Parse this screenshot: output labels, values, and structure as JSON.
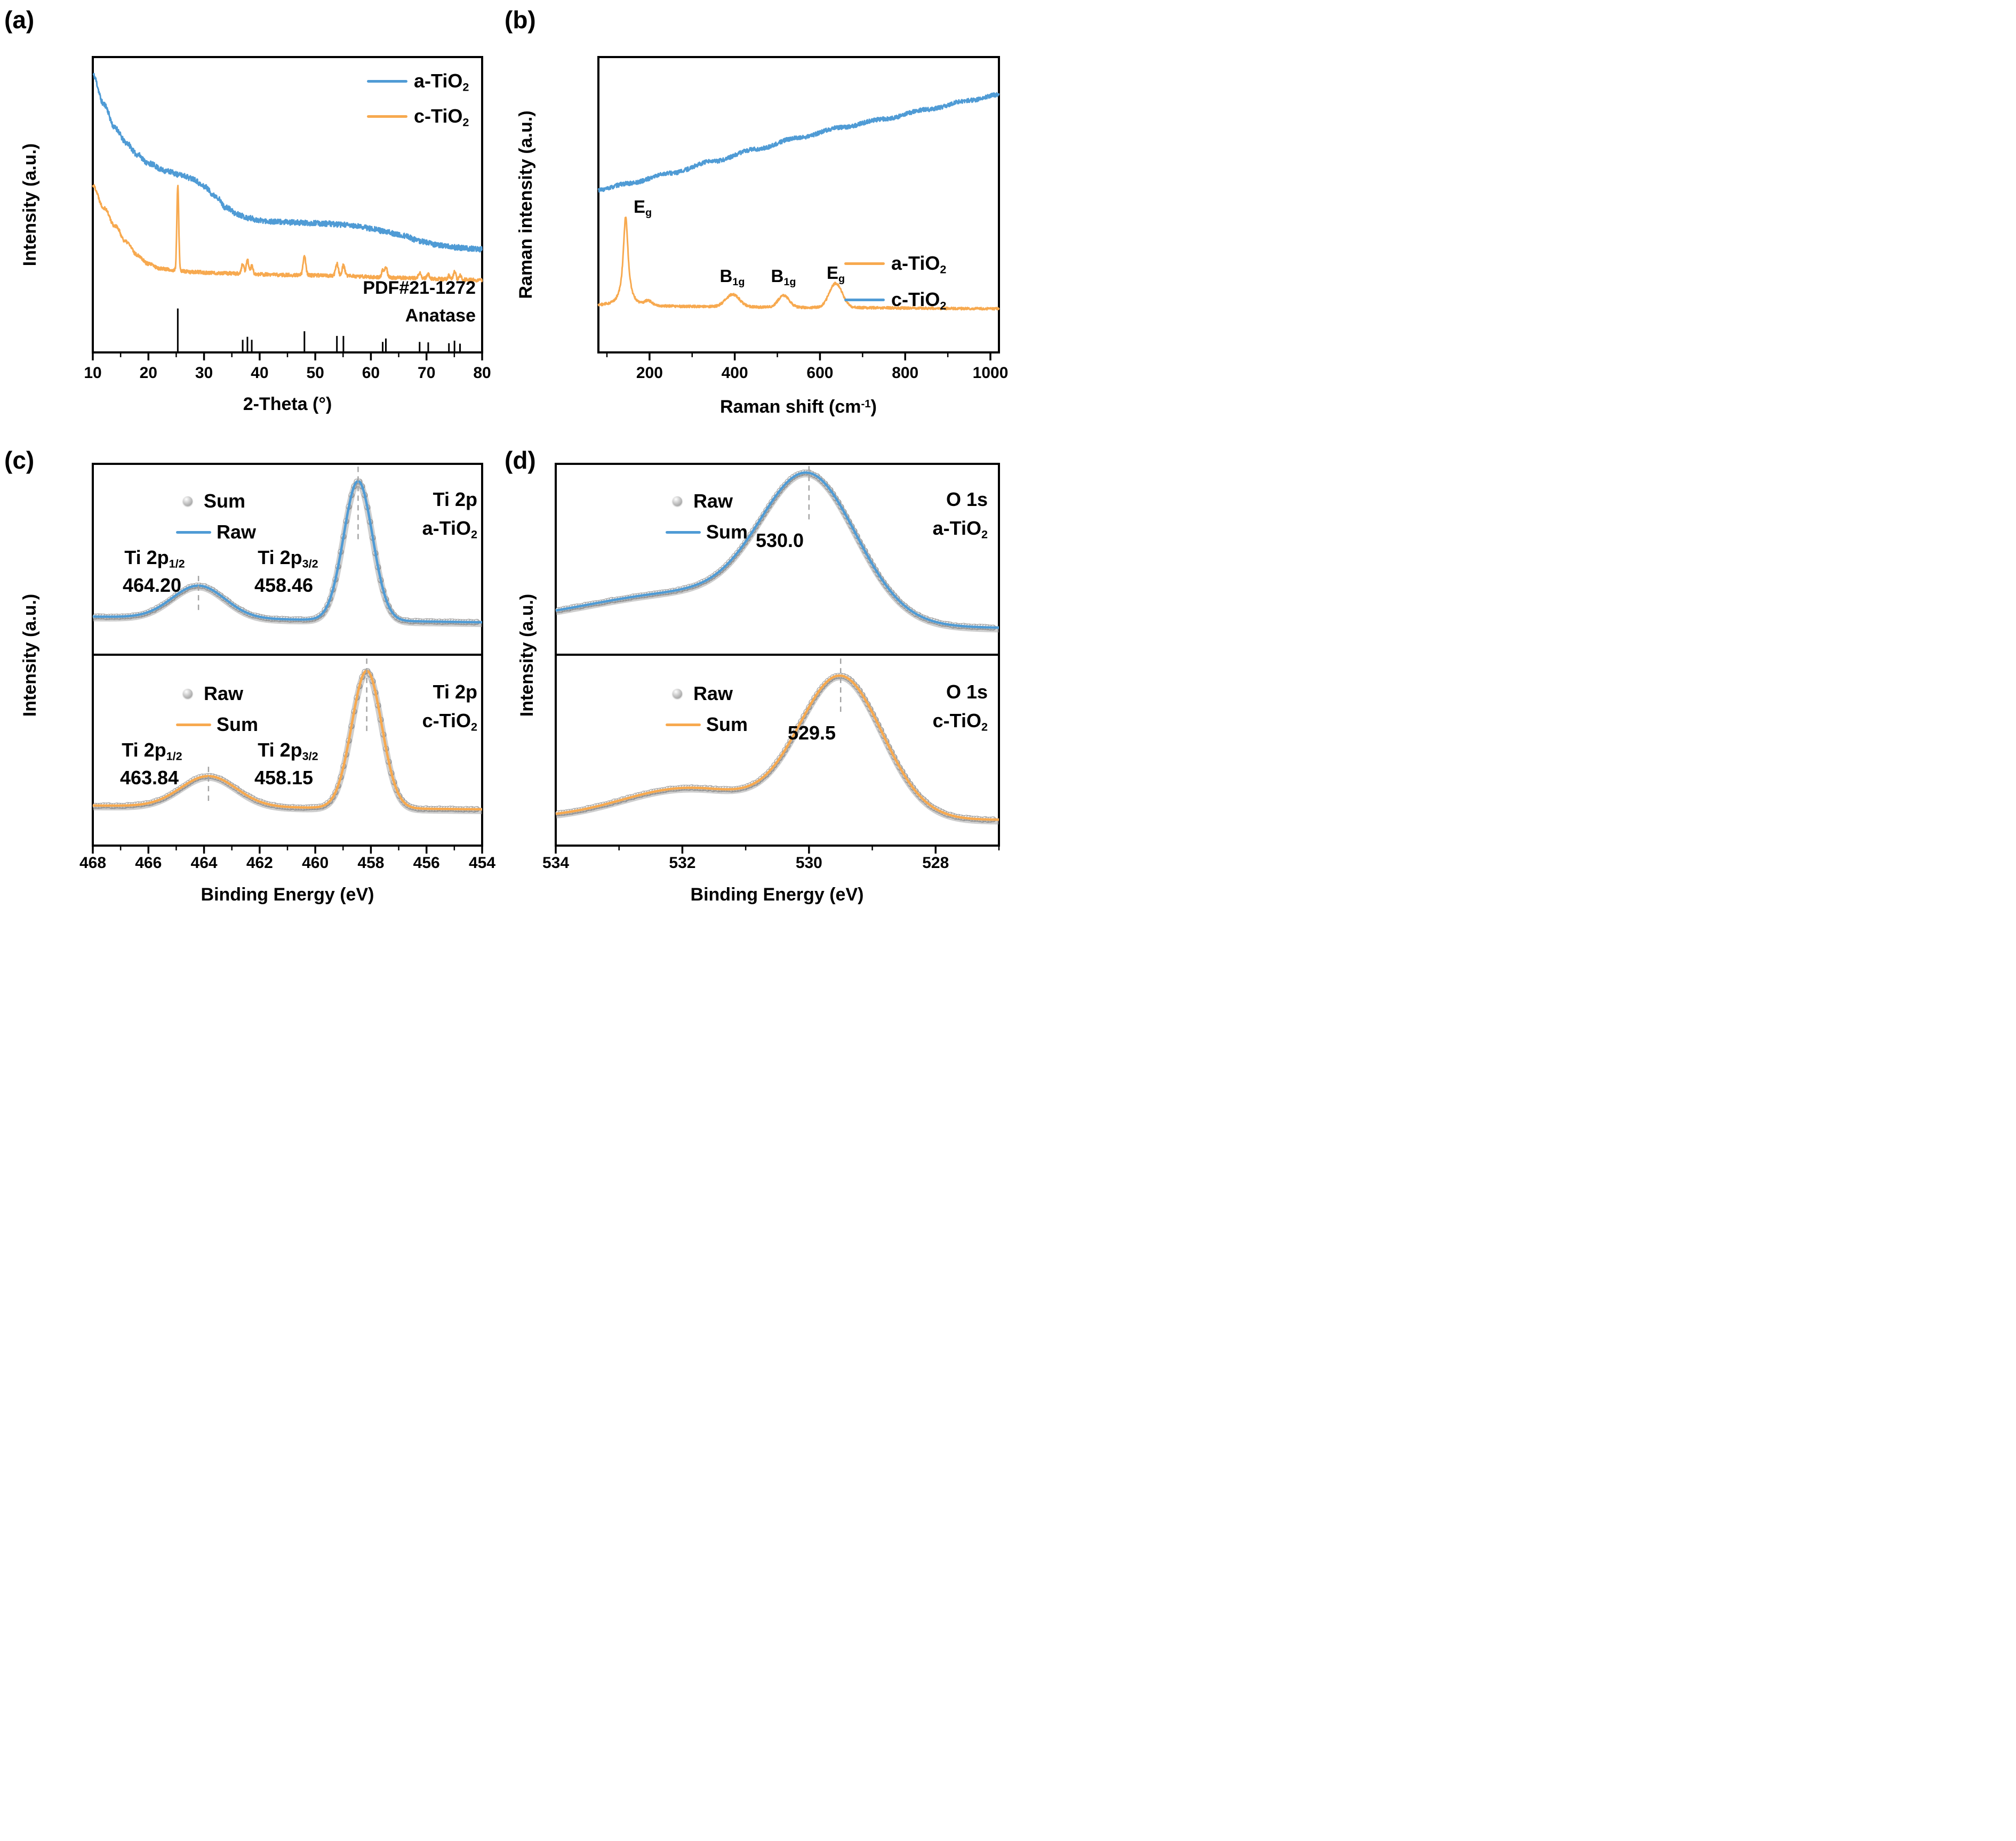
{
  "panels": {
    "a": {
      "letter": "(a)",
      "ylabel": "Intensity (a.u.)",
      "xlabel": "2-Theta (°)"
    },
    "b": {
      "letter": "(b)",
      "ylabel": "Raman intensity (a.u.)",
      "xlabel_rich": [
        [
          "t",
          "Raman shift (cm"
        ],
        [
          "sup",
          "-1"
        ],
        [
          "t",
          ")"
        ]
      ]
    },
    "c": {
      "letter": "(c)",
      "ylabel": "Intensity (a.u.)",
      "xlabel": "Binding Energy (eV)"
    },
    "d": {
      "letter": "(d)",
      "ylabel": "Intensity (a.u.)",
      "xlabel": "Binding Energy (eV)"
    }
  },
  "chart_data": [
    {
      "id": "xrd",
      "type": "line",
      "panel": "a",
      "xlabel": "2-Theta (deg)",
      "ylabel": "Intensity (a.u.)",
      "x_range": [
        10,
        80
      ],
      "x_ticks_major": [
        10,
        20,
        30,
        40,
        50,
        60,
        70,
        80
      ],
      "x_ticks_minor": [
        15,
        25,
        35,
        45,
        55,
        65,
        75
      ],
      "grid": false,
      "legend_position": "top-right",
      "series": [
        {
          "name": "a-TiO2",
          "label_rich": [
            [
              "t",
              "a-TiO"
            ],
            [
              "sub",
              "2"
            ]
          ],
          "color": "#4F9BD5",
          "noise": 0.009,
          "seed": 11,
          "anchors": [
            [
              10,
              0.94
            ],
            [
              12,
              0.84
            ],
            [
              14,
              0.76
            ],
            [
              16,
              0.71
            ],
            [
              18,
              0.67
            ],
            [
              20,
              0.64
            ],
            [
              23,
              0.615
            ],
            [
              26,
              0.6
            ],
            [
              28,
              0.588
            ],
            [
              30,
              0.562
            ],
            [
              32,
              0.53
            ],
            [
              34,
              0.49
            ],
            [
              36,
              0.468
            ],
            [
              38,
              0.455
            ],
            [
              40,
              0.447
            ],
            [
              43,
              0.442
            ],
            [
              46,
              0.44
            ],
            [
              49,
              0.438
            ],
            [
              52,
              0.436
            ],
            [
              55,
              0.432
            ],
            [
              58,
              0.426
            ],
            [
              60,
              0.42
            ],
            [
              63,
              0.407
            ],
            [
              66,
              0.394
            ],
            [
              69,
              0.376
            ],
            [
              72,
              0.364
            ],
            [
              75,
              0.356
            ],
            [
              78,
              0.351
            ],
            [
              80,
              0.349
            ]
          ],
          "peaks": []
        },
        {
          "name": "c-TiO2",
          "label_rich": [
            [
              "t",
              "c-TiO"
            ],
            [
              "sub",
              "2"
            ]
          ],
          "color": "#F7A94F",
          "noise": 0.006,
          "seed": 22,
          "anchors": [
            [
              10,
              0.565
            ],
            [
              12,
              0.49
            ],
            [
              14,
              0.428
            ],
            [
              16,
              0.374
            ],
            [
              18,
              0.33
            ],
            [
              20,
              0.3
            ],
            [
              22,
              0.285
            ],
            [
              25,
              0.277
            ],
            [
              28,
              0.272
            ],
            [
              32,
              0.269
            ],
            [
              36,
              0.267
            ],
            [
              40,
              0.264
            ],
            [
              45,
              0.262
            ],
            [
              50,
              0.261
            ],
            [
              55,
              0.259
            ],
            [
              60,
              0.256
            ],
            [
              65,
              0.253
            ],
            [
              70,
              0.25
            ],
            [
              75,
              0.247
            ],
            [
              80,
              0.245
            ]
          ],
          "peaks": [
            [
              25.28,
              0.285,
              0.17
            ],
            [
              36.95,
              0.032,
              0.22
            ],
            [
              37.8,
              0.048,
              0.22
            ],
            [
              38.58,
              0.028,
              0.22
            ],
            [
              48.05,
              0.062,
              0.25
            ],
            [
              53.89,
              0.042,
              0.25
            ],
            [
              55.06,
              0.036,
              0.25
            ],
            [
              62.12,
              0.02,
              0.22
            ],
            [
              62.69,
              0.034,
              0.25
            ],
            [
              68.76,
              0.018,
              0.22
            ],
            [
              70.31,
              0.016,
              0.22
            ],
            [
              74.03,
              0.013,
              0.2
            ],
            [
              75.03,
              0.026,
              0.22
            ],
            [
              76.02,
              0.014,
              0.2
            ]
          ]
        }
      ],
      "reference": {
        "label_line1": "PDF#21-1272",
        "label_line2": "Anatase",
        "max_height": 0.145,
        "sticks": [
          [
            25.28,
            1.0
          ],
          [
            36.95,
            0.27
          ],
          [
            37.8,
            0.34
          ],
          [
            38.58,
            0.27
          ],
          [
            48.05,
            0.47
          ],
          [
            53.89,
            0.36
          ],
          [
            55.06,
            0.36
          ],
          [
            62.12,
            0.22
          ],
          [
            62.69,
            0.3
          ],
          [
            68.76,
            0.22
          ],
          [
            70.31,
            0.21
          ],
          [
            74.03,
            0.19
          ],
          [
            75.03,
            0.25
          ],
          [
            76.02,
            0.18
          ]
        ]
      }
    },
    {
      "id": "raman",
      "type": "line",
      "panel": "b",
      "xlabel": "Raman shift (cm-1)",
      "ylabel": "Raman intensity (a.u.)",
      "x_range": [
        80,
        1020
      ],
      "x_ticks_major": [
        200,
        400,
        600,
        800,
        1000
      ],
      "x_ticks_minor": [
        100,
        300,
        500,
        700,
        900
      ],
      "grid": false,
      "legend_position": "middle-right",
      "series": [
        {
          "name": "a-TiO2",
          "label_rich": [
            [
              "t",
              "a-TiO"
            ],
            [
              "sub",
              "2"
            ]
          ],
          "color": "#F7A94F",
          "noise": 0.004,
          "seed": 44,
          "anchors": [
            [
              80,
              0.158
            ],
            [
              300,
              0.155
            ],
            [
              600,
              0.152
            ],
            [
              1020,
              0.148
            ]
          ],
          "peaks_lorentz": [
            [
              144,
              0.3,
              7
            ]
          ],
          "peaks": [
            [
              197,
              0.015,
              8
            ],
            [
              395,
              0.042,
              16
            ],
            [
              515,
              0.04,
              13
            ],
            [
              637,
              0.082,
              15
            ]
          ]
        },
        {
          "name": "c-TiO2",
          "label_rich": [
            [
              "t",
              "c-TiO"
            ],
            [
              "sub",
              "2"
            ]
          ],
          "color": "#4F9BD5",
          "noise": 0.007,
          "seed": 33,
          "anchors": [
            [
              80,
              0.55
            ],
            [
              150,
              0.572
            ],
            [
              250,
              0.607
            ],
            [
              350,
              0.647
            ],
            [
              450,
              0.688
            ],
            [
              550,
              0.727
            ],
            [
              650,
              0.762
            ],
            [
              750,
              0.79
            ],
            [
              850,
              0.822
            ],
            [
              950,
              0.853
            ],
            [
              1020,
              0.873
            ]
          ],
          "peaks": []
        }
      ],
      "peak_annotations": [
        {
          "x": 144,
          "label": "Eg",
          "label_rich": [
            [
              "t",
              "E"
            ],
            [
              "sub",
              "g"
            ]
          ]
        },
        {
          "x": 395,
          "label": "B1g",
          "label_rich": [
            [
              "t",
              "B"
            ],
            [
              "sub",
              "1g"
            ]
          ]
        },
        {
          "x": 515,
          "label": "B1g",
          "label_rich": [
            [
              "t",
              "B"
            ],
            [
              "sub",
              "1g"
            ]
          ]
        },
        {
          "x": 637,
          "label": "Eg",
          "label_rich": [
            [
              "t",
              "E"
            ],
            [
              "sub",
              "g"
            ]
          ]
        }
      ]
    },
    {
      "id": "xps_ti2p",
      "type": "line",
      "panel": "c",
      "xlabel": "Binding Energy (eV)",
      "ylabel": "Intensity (a.u.)",
      "x_range": [
        468,
        454
      ],
      "x_ticks_major": [
        468,
        466,
        464,
        462,
        460,
        458,
        456,
        454
      ],
      "x_ticks_minor": [
        467,
        465,
        463,
        461,
        459,
        457,
        455
      ],
      "grid": false,
      "subpanels": [
        {
          "sample": "a-TiO2",
          "line_color": "#4F9BD5",
          "marker_color": "gray-sphere",
          "legend": [
            {
              "marker": "sphere",
              "label": "Sum"
            },
            {
              "marker": "line",
              "label": "Raw"
            }
          ],
          "baseline": [
            0.2,
            0.17
          ],
          "noise": 0.002,
          "seed": 55,
          "peaks": [
            [
              464.2,
              0.17,
              0.95
            ],
            [
              458.46,
              0.73,
              0.52
            ]
          ],
          "dashed": [
            {
              "x": 464.2,
              "y1": 0.587,
              "y2": 0.767
            },
            {
              "x": 458.46,
              "y1": 0.015,
              "y2": 0.41
            }
          ],
          "peak_labels": [
            {
              "name_rich": [
                [
                  "t",
                  "Ti 2p"
                ],
                [
                  "sub",
                  "1/2"
                ]
              ],
              "name": "Ti 2p1/2",
              "value": "464.20"
            },
            {
              "name_rich": [
                [
                  "t",
                  "Ti 2p"
                ],
                [
                  "sub",
                  "3/2"
                ]
              ],
              "name": "Ti 2p3/2",
              "value": "458.46"
            }
          ],
          "tag_line1": "Ti 2p",
          "tag_line2_rich": [
            [
              "t",
              "a-TiO"
            ],
            [
              "sub",
              "2"
            ]
          ],
          "tag_line2": "a-TiO2"
        },
        {
          "sample": "c-TiO2",
          "line_color": "#F7A94F",
          "marker_color": "gray-sphere",
          "legend": [
            {
              "marker": "sphere",
              "label": "Raw"
            },
            {
              "marker": "line",
              "label": "Sum"
            }
          ],
          "baseline": [
            0.21,
            0.19
          ],
          "noise": 0.002,
          "seed": 66,
          "peaks": [
            [
              463.84,
              0.16,
              1.0
            ],
            [
              458.15,
              0.72,
              0.54
            ]
          ],
          "dashed": [
            {
              "x": 463.84,
              "y1": 0.587,
              "y2": 0.767
            },
            {
              "x": 458.15,
              "y1": 0.02,
              "y2": 0.41
            }
          ],
          "peak_labels": [
            {
              "name_rich": [
                [
                  "t",
                  "Ti 2p"
                ],
                [
                  "sub",
                  "1/2"
                ]
              ],
              "name": "Ti 2p1/2",
              "value": "463.84"
            },
            {
              "name_rich": [
                [
                  "t",
                  "Ti 2p"
                ],
                [
                  "sub",
                  "3/2"
                ]
              ],
              "name": "Ti 2p3/2",
              "value": "458.15"
            }
          ],
          "tag_line1": "Ti 2p",
          "tag_line2_rich": [
            [
              "t",
              "c-TiO"
            ],
            [
              "sub",
              "2"
            ]
          ],
          "tag_line2": "c-TiO2"
        }
      ]
    },
    {
      "id": "xps_o1s",
      "type": "line",
      "panel": "d",
      "xlabel": "Binding Energy (eV)",
      "ylabel": "Intensity (a.u.)",
      "x_range": [
        534,
        527
      ],
      "x_ticks_major": [
        534,
        532,
        530,
        528
      ],
      "x_ticks_minor": [
        533,
        531,
        529,
        527
      ],
      "grid": false,
      "subpanels": [
        {
          "sample": "a-TiO2",
          "line_color": "#4F9BD5",
          "marker_color": "gray-sphere",
          "legend": [
            {
              "marker": "sphere",
              "label": "Raw"
            },
            {
              "marker": "line",
              "label": "Sum"
            }
          ],
          "baseline": [
            0.16,
            0.14
          ],
          "noise": 0.002,
          "seed": 77,
          "peaks": [
            [
              530.0,
              0.72,
              0.75
            ],
            [
              531.9,
              0.17,
              1.6
            ]
          ],
          "dashed": [
            {
              "x": 530.0,
              "y1": 0.012,
              "y2": 0.31
            }
          ],
          "peak_labels": [
            {
              "value": "530.0"
            }
          ],
          "tag_line1": "O 1s",
          "tag_line2_rich": [
            [
              "t",
              "a-TiO"
            ],
            [
              "sub",
              "2"
            ]
          ],
          "tag_line2": "a-TiO2"
        },
        {
          "sample": "c-TiO2",
          "line_color": "#F7A94F",
          "marker_color": "gray-sphere",
          "legend": [
            {
              "marker": "sphere",
              "label": "Raw"
            },
            {
              "marker": "line",
              "label": "Sum"
            }
          ],
          "baseline": [
            0.145,
            0.135
          ],
          "noise": 0.002,
          "seed": 88,
          "peaks": [
            [
              529.5,
              0.74,
              0.66
            ],
            [
              531.9,
              0.16,
              1.05
            ]
          ],
          "dashed": [
            {
              "x": 529.5,
              "y1": 0.02,
              "y2": 0.32
            }
          ],
          "peak_labels": [
            {
              "value": "529.5"
            }
          ],
          "tag_line1": "O 1s",
          "tag_line2_rich": [
            [
              "t",
              "c-TiO"
            ],
            [
              "sub",
              "2"
            ]
          ],
          "tag_line2": "c-TiO2"
        }
      ]
    }
  ]
}
